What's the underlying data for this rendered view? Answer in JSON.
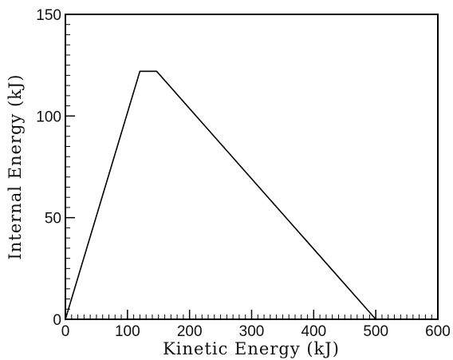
{
  "chart_data": {
    "type": "line",
    "title": "",
    "xlabel": "Kinetic Energy (kJ)",
    "ylabel": "Internal Energy (kJ)",
    "xlim": [
      0,
      600
    ],
    "ylim": [
      0,
      150
    ],
    "xticks": [
      0,
      100,
      200,
      300,
      400,
      500,
      600
    ],
    "yticks": [
      0,
      50,
      100,
      150
    ],
    "x_minor_step": 10,
    "y_minor_step": 5,
    "grid": false,
    "legend": "none",
    "series": [
      {
        "x": [
          0,
          120,
          147,
          500
        ],
        "y": [
          0,
          122,
          122,
          0
        ],
        "color": "#000000"
      }
    ]
  }
}
